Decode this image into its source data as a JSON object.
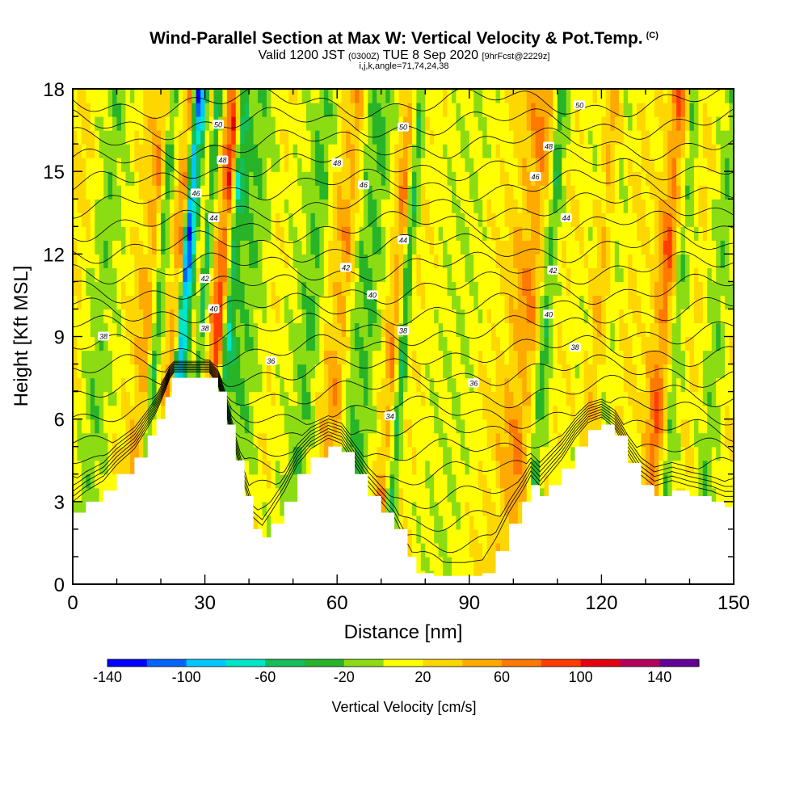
{
  "header": {
    "title": "Wind-Parallel Section at Max W: Vertical Velocity & Pot.Temp.",
    "copyright": "(C)",
    "valid_main": "Valid 1200 JST",
    "valid_utc": "(0300Z)",
    "valid_date": "TUE 8 Sep 2020",
    "forecast": "[9hrFcst@2229z]",
    "indices": "i,j,k,angle=71,74,24,38"
  },
  "chart_data": {
    "type": "heatmap",
    "xlabel": "Distance [nm]",
    "ylabel": "Height [Kft MSL]",
    "xlim": [
      0,
      150
    ],
    "ylim": [
      0,
      18
    ],
    "x_ticks": [
      "0",
      "30",
      "60",
      "90",
      "120",
      "150"
    ],
    "y_ticks": [
      "0",
      "3",
      "6",
      "9",
      "12",
      "15",
      "18"
    ],
    "colorbar": {
      "label": "Vertical Velocity [cm/s]",
      "range": [
        -140,
        160
      ],
      "tick_labels": [
        "-140",
        "-100",
        "-60",
        "-20",
        "20",
        "60",
        "100",
        "140"
      ],
      "colors": [
        "#0000ff",
        "#0064ff",
        "#00c8ff",
        "#00e6c8",
        "#14be5a",
        "#28b428",
        "#8cdc14",
        "#ffff00",
        "#ffd700",
        "#ffaa00",
        "#ff7800",
        "#ff3c00",
        "#e6000f",
        "#b4005a",
        "#640096"
      ]
    },
    "terrain_kft": [
      {
        "x": 0,
        "h": 2.6
      },
      {
        "x": 3,
        "h": 3.0
      },
      {
        "x": 7,
        "h": 3.4
      },
      {
        "x": 10,
        "h": 4.0
      },
      {
        "x": 14,
        "h": 4.6
      },
      {
        "x": 17,
        "h": 5.4
      },
      {
        "x": 19,
        "h": 6.0
      },
      {
        "x": 21,
        "h": 6.8
      },
      {
        "x": 22.5,
        "h": 7.5
      },
      {
        "x": 25,
        "h": 7.5
      },
      {
        "x": 28,
        "h": 7.5
      },
      {
        "x": 31,
        "h": 7.5
      },
      {
        "x": 33,
        "h": 7.0
      },
      {
        "x": 35,
        "h": 5.8
      },
      {
        "x": 37,
        "h": 4.5
      },
      {
        "x": 39,
        "h": 3.2
      },
      {
        "x": 41,
        "h": 2.0
      },
      {
        "x": 43,
        "h": 1.7
      },
      {
        "x": 45,
        "h": 2.2
      },
      {
        "x": 48,
        "h": 3.0
      },
      {
        "x": 51,
        "h": 4.0
      },
      {
        "x": 54,
        "h": 4.6
      },
      {
        "x": 58,
        "h": 5.0
      },
      {
        "x": 61,
        "h": 4.8
      },
      {
        "x": 64,
        "h": 4.0
      },
      {
        "x": 67,
        "h": 3.2
      },
      {
        "x": 70,
        "h": 2.6
      },
      {
        "x": 73,
        "h": 2.0
      },
      {
        "x": 76,
        "h": 1.0
      },
      {
        "x": 78,
        "h": 0.4
      },
      {
        "x": 82,
        "h": 0.3
      },
      {
        "x": 86,
        "h": 0.3
      },
      {
        "x": 89,
        "h": 0.3
      },
      {
        "x": 93,
        "h": 0.4
      },
      {
        "x": 96,
        "h": 1.2
      },
      {
        "x": 99,
        "h": 2.2
      },
      {
        "x": 102,
        "h": 3.0
      },
      {
        "x": 104,
        "h": 3.6
      },
      {
        "x": 106,
        "h": 3.2
      },
      {
        "x": 108,
        "h": 3.6
      },
      {
        "x": 111,
        "h": 4.2
      },
      {
        "x": 114,
        "h": 5.0
      },
      {
        "x": 117,
        "h": 5.6
      },
      {
        "x": 120,
        "h": 5.8
      },
      {
        "x": 123,
        "h": 5.4
      },
      {
        "x": 126,
        "h": 4.4
      },
      {
        "x": 129,
        "h": 3.6
      },
      {
        "x": 132,
        "h": 3.2
      },
      {
        "x": 136,
        "h": 3.4
      },
      {
        "x": 140,
        "h": 3.2
      },
      {
        "x": 145,
        "h": 3.0
      },
      {
        "x": 148,
        "h": 2.8
      },
      {
        "x": 150,
        "h": 2.8
      }
    ],
    "velocity_bands": [
      {
        "x": 0,
        "v": 30
      },
      {
        "x": 6,
        "v": -20
      },
      {
        "x": 12,
        "v": 20
      },
      {
        "x": 17,
        "v": 60
      },
      {
        "x": 19,
        "v": -40
      },
      {
        "x": 21,
        "v": 30
      },
      {
        "x": 23,
        "v": 70
      },
      {
        "x": 24.5,
        "v": -130
      },
      {
        "x": 26,
        "v": -70
      },
      {
        "x": 27.5,
        "v": 30
      },
      {
        "x": 29,
        "v": -60
      },
      {
        "x": 31,
        "v": 50
      },
      {
        "x": 33,
        "v": 110
      },
      {
        "x": 35,
        "v": -60
      },
      {
        "x": 37,
        "v": -30
      },
      {
        "x": 40,
        "v": -20
      },
      {
        "x": 45,
        "v": 20
      },
      {
        "x": 50,
        "v": 0
      },
      {
        "x": 54,
        "v": -30
      },
      {
        "x": 58,
        "v": 40
      },
      {
        "x": 61,
        "v": 60
      },
      {
        "x": 64,
        "v": -20
      },
      {
        "x": 67,
        "v": -30
      },
      {
        "x": 70,
        "v": 10
      },
      {
        "x": 73,
        "v": 70
      },
      {
        "x": 75,
        "v": -50
      },
      {
        "x": 77,
        "v": 20
      },
      {
        "x": 82,
        "v": 10
      },
      {
        "x": 88,
        "v": 0
      },
      {
        "x": 95,
        "v": 20
      },
      {
        "x": 99,
        "v": 40
      },
      {
        "x": 103,
        "v": 70
      },
      {
        "x": 105,
        "v": 40
      },
      {
        "x": 107,
        "v": -40
      },
      {
        "x": 110,
        "v": 20
      },
      {
        "x": 116,
        "v": 10
      },
      {
        "x": 119,
        "v": 50
      },
      {
        "x": 122,
        "v": 0
      },
      {
        "x": 126,
        "v": 30
      },
      {
        "x": 130,
        "v": 20
      },
      {
        "x": 134,
        "v": 90
      },
      {
        "x": 137,
        "v": -20
      },
      {
        "x": 141,
        "v": 30
      },
      {
        "x": 146,
        "v": -20
      },
      {
        "x": 150,
        "v": 20
      }
    ],
    "isentropes": [
      {
        "label": "34",
        "x": 72,
        "y": 6.1
      },
      {
        "label": "36",
        "x": 45,
        "y": 8.1
      },
      {
        "label": "36",
        "x": 91,
        "y": 7.3
      },
      {
        "label": "38",
        "x": 7,
        "y": 9.0
      },
      {
        "label": "38",
        "x": 30,
        "y": 9.3
      },
      {
        "label": "38",
        "x": 75,
        "y": 9.2
      },
      {
        "label": "38",
        "x": 114,
        "y": 8.6
      },
      {
        "label": "40",
        "x": 32,
        "y": 10.0
      },
      {
        "label": "40",
        "x": 68,
        "y": 10.5
      },
      {
        "label": "40",
        "x": 108,
        "y": 9.8
      },
      {
        "label": "42",
        "x": 30,
        "y": 11.1
      },
      {
        "label": "42",
        "x": 62,
        "y": 11.5
      },
      {
        "label": "42",
        "x": 109,
        "y": 11.4
      },
      {
        "label": "44",
        "x": 32,
        "y": 13.3
      },
      {
        "label": "44",
        "x": 75,
        "y": 12.5
      },
      {
        "label": "44",
        "x": 112,
        "y": 13.3
      },
      {
        "label": "46",
        "x": 28,
        "y": 14.2
      },
      {
        "label": "46",
        "x": 66,
        "y": 14.5
      },
      {
        "label": "46",
        "x": 105,
        "y": 14.8
      },
      {
        "label": "48",
        "x": 34,
        "y": 15.4
      },
      {
        "label": "48",
        "x": 60,
        "y": 15.3
      },
      {
        "label": "48",
        "x": 108,
        "y": 15.9
      },
      {
        "label": "50",
        "x": 33,
        "y": 16.7
      },
      {
        "label": "50",
        "x": 75,
        "y": 16.6
      },
      {
        "label": "50",
        "x": 115,
        "y": 17.4
      }
    ]
  }
}
